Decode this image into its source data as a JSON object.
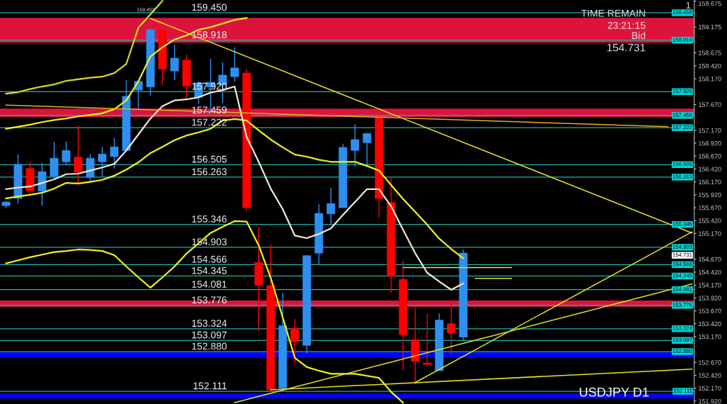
{
  "chart_data": {
    "type": "candlestick",
    "title": "USDJPY D1",
    "categories": [
      null,
      null,
      null,
      null,
      null,
      null,
      null,
      null,
      null,
      null,
      null,
      null,
      null,
      null,
      null,
      null,
      null,
      null,
      null,
      null,
      null,
      null,
      null,
      null,
      null,
      null,
      null,
      null,
      null,
      null,
      null,
      null,
      null,
      null,
      null,
      null,
      null,
      null,
      null,
      null,
      null,
      null,
      null,
      null,
      null,
      null,
      null,
      null,
      null,
      null,
      null,
      null,
      null,
      null,
      null,
      null,
      null,
      null
    ],
    "ohlc": [
      [
        155.71,
        155.8,
        155.66,
        155.78
      ],
      [
        155.85,
        156.7,
        155.75,
        156.51
      ],
      [
        156.43,
        156.56,
        155.92,
        156.0
      ],
      [
        155.99,
        156.54,
        155.71,
        156.37
      ],
      [
        156.28,
        156.95,
        156.22,
        156.63
      ],
      [
        156.56,
        156.96,
        156.49,
        156.78
      ],
      [
        156.65,
        157.26,
        156.12,
        156.36
      ],
      [
        156.26,
        156.71,
        156.17,
        156.63
      ],
      [
        156.56,
        156.85,
        156.26,
        156.71
      ],
      [
        156.66,
        157.02,
        156.43,
        156.85
      ],
      [
        156.78,
        158.14,
        156.77,
        157.83
      ],
      [
        157.95,
        158.14,
        157.59,
        158.12
      ],
      [
        158.01,
        159.15,
        157.84,
        159.12
      ],
      [
        159.11,
        159.11,
        158.05,
        158.36
      ],
      [
        158.32,
        158.83,
        158.14,
        158.57
      ],
      [
        158.53,
        158.64,
        157.77,
        158.03
      ],
      [
        157.81,
        158.12,
        157.68,
        158.09
      ],
      [
        158.01,
        158.56,
        157.5,
        158.1
      ],
      [
        158.05,
        158.49,
        157.7,
        158.24
      ],
      [
        158.21,
        158.78,
        158.12,
        158.38
      ],
      [
        158.28,
        158.36,
        155.6,
        155.67
      ],
      [
        154.61,
        155.3,
        153.28,
        154.17
      ],
      [
        154.16,
        154.96,
        152.1,
        152.14
      ],
      [
        152.17,
        154.02,
        152.14,
        153.38
      ],
      [
        153.33,
        153.51,
        152.66,
        153.07
      ],
      [
        153.0,
        154.75,
        152.85,
        154.74
      ],
      [
        154.79,
        155.74,
        154.57,
        155.56
      ],
      [
        155.55,
        156.06,
        155.33,
        155.75
      ],
      [
        155.67,
        156.91,
        155.67,
        156.84
      ],
      [
        156.78,
        157.29,
        156.47,
        156.99
      ],
      [
        156.93,
        157.11,
        156.47,
        157.11
      ],
      [
        157.43,
        157.43,
        155.48,
        155.85
      ],
      [
        155.77,
        156.26,
        154.02,
        154.34
      ],
      [
        154.28,
        154.64,
        152.52,
        153.21
      ],
      [
        153.11,
        153.75,
        152.25,
        152.69
      ],
      [
        152.66,
        153.62,
        152.63,
        152.63
      ],
      [
        152.51,
        153.62,
        152.51,
        153.49
      ],
      [
        153.42,
        153.88,
        152.83,
        153.24
      ],
      [
        153.16,
        154.86,
        153.1,
        154.79
      ],
      null,
      null,
      null,
      null,
      null,
      null,
      null,
      null,
      null,
      null,
      null,
      null,
      null,
      null,
      null,
      null,
      null,
      null,
      null
    ],
    "colors": [
      "#2e8ff0",
      "#2e8ff0",
      "#ff0000",
      "#2e8ff0",
      "#2e8ff0",
      "#2e8ff0",
      "#ff0000",
      "#2e8ff0",
      "#2e8ff0",
      "#2e8ff0",
      "#2e8ff0",
      "#2e8ff0",
      "#2e8ff0",
      "#ff0000",
      "#2e8ff0",
      "#ff0000",
      "#2e8ff0",
      "#2e8ff0",
      "#2e8ff0",
      "#2e8ff0",
      "#ff0000",
      "#ff0000",
      "#ff0000",
      "#2e8ff0",
      "#ff0000",
      "#2e8ff0",
      "#2e8ff0",
      "#2e8ff0",
      "#2e8ff0",
      "#2e8ff0",
      "#2e8ff0",
      "#ff0000",
      "#ff0000",
      "#ff0000",
      "#ff0000",
      "#ff0000",
      "#2e8ff0",
      "#ff0000",
      "#2e8ff0",
      null,
      null,
      null,
      null,
      null,
      null,
      null,
      null,
      null,
      null,
      null,
      null,
      null,
      null,
      null,
      null,
      null,
      null,
      null
    ],
    "series": [
      {
        "type": "line",
        "color": "#f5e6d3",
        "values": [
          156.03,
          156.06,
          156.08,
          156.15,
          156.22,
          156.32,
          156.33,
          156.39,
          156.45,
          156.52,
          156.78,
          157.09,
          157.4,
          157.64,
          157.75,
          157.77,
          157.81,
          157.9,
          157.95,
          158.02,
          157.04,
          156.56,
          156.04,
          155.64,
          155.13,
          155.08,
          155.16,
          155.27,
          155.53,
          155.78,
          156.03,
          156.03,
          155.7,
          155.24,
          154.79,
          154.41,
          154.24,
          154.08,
          154.2,
          null,
          null,
          null,
          null,
          null,
          null,
          null,
          null,
          null,
          null,
          null,
          null,
          null,
          null,
          null,
          null,
          null,
          null,
          null
        ]
      },
      {
        "type": "line",
        "color": "#f0f020",
        "values": [
          155.85,
          155.89,
          155.92,
          155.96,
          156.04,
          156.15,
          156.14,
          156.17,
          156.21,
          156.29,
          156.41,
          156.55,
          156.73,
          156.85,
          156.98,
          157.07,
          157.13,
          157.2,
          157.36,
          157.39,
          157.36,
          157.17,
          156.99,
          156.84,
          156.7,
          156.66,
          156.6,
          156.56,
          156.56,
          156.56,
          156.48,
          156.39,
          156.11,
          155.84,
          155.59,
          155.34,
          155.07,
          154.87,
          154.69,
          null,
          null,
          null,
          null,
          null,
          null,
          null,
          null,
          null,
          null,
          null,
          null,
          null,
          null,
          null,
          null,
          null,
          null,
          null
        ]
      },
      {
        "type": "line",
        "color": "#f0f020",
        "values": [
          157.2,
          157.24,
          157.28,
          157.33,
          157.37,
          157.4,
          157.44,
          157.47,
          157.5,
          157.58,
          157.75,
          158.12,
          158.6,
          158.78,
          158.93,
          159.01,
          159.12,
          159.17,
          159.24,
          159.31,
          159.35,
          null,
          null,
          null,
          null,
          null,
          null,
          null,
          null,
          null,
          null,
          null,
          null,
          null,
          null,
          null,
          null,
          null,
          null,
          null,
          null,
          null,
          null,
          null,
          null,
          null,
          null,
          null,
          null,
          null,
          null,
          null,
          null,
          null,
          null,
          null,
          null,
          null
        ]
      },
      {
        "type": "line",
        "color": "#f0f020",
        "values": [
          154.59,
          154.65,
          154.71,
          154.76,
          154.81,
          154.83,
          154.86,
          154.85,
          154.83,
          154.75,
          154.53,
          154.32,
          154.12,
          154.32,
          154.53,
          154.78,
          154.98,
          155.18,
          155.3,
          155.41,
          155.4,
          154.94,
          154.31,
          153.54,
          152.76,
          152.58,
          152.51,
          152.45,
          152.45,
          152.45,
          152.41,
          152.37,
          152.1,
          151.89,
          null,
          null,
          null,
          null,
          null,
          null,
          null,
          null,
          null,
          null,
          null,
          null,
          null,
          null,
          null,
          null,
          null,
          null,
          null,
          null,
          null,
          null,
          null,
          null
        ]
      },
      {
        "type": "line",
        "color": "#d8d820",
        "values": [
          157.88,
          157.91,
          157.97,
          158.02,
          158.06,
          158.13,
          158.16,
          158.19,
          158.21,
          158.28,
          158.46,
          159.16,
          159.42,
          159.68,
          null,
          null,
          null,
          null,
          null,
          null,
          null,
          null,
          null,
          null,
          null,
          null,
          null,
          null,
          null,
          null,
          null,
          null,
          null,
          null,
          null,
          null,
          null,
          null,
          null,
          null,
          null,
          null,
          null,
          null,
          null,
          null,
          null,
          null,
          null,
          null,
          null,
          null,
          null,
          null,
          null,
          null,
          null,
          null
        ]
      },
      {
        "type": "line",
        "color": "#e8e020",
        "values": [
          null,
          null,
          null,
          null,
          null,
          null,
          null,
          null,
          null,
          null,
          null,
          null,
          159.34,
          null,
          null,
          null,
          null,
          null,
          null,
          null,
          null,
          null,
          null,
          null,
          null,
          null,
          null,
          null,
          null,
          null,
          null,
          null,
          null,
          null,
          null,
          null,
          null,
          null,
          null,
          null,
          null,
          null,
          null,
          null,
          null,
          null,
          null,
          null,
          null,
          null,
          null,
          null,
          null,
          null,
          null,
          null,
          null,
          155.18
        ]
      },
      {
        "type": "line",
        "color": "#e0b020",
        "values": [
          157.66,
          null,
          null,
          null,
          null,
          null,
          null,
          null,
          null,
          null,
          null,
          null,
          null,
          null,
          null,
          null,
          null,
          null,
          null,
          null,
          null,
          null,
          null,
          null,
          null,
          null,
          null,
          null,
          null,
          null,
          null,
          null,
          null,
          null,
          null,
          null,
          null,
          null,
          null,
          null,
          null,
          null,
          null,
          null,
          null,
          null,
          null,
          null,
          null,
          null,
          null,
          null,
          null,
          null,
          null,
          157.24,
          null,
          null
        ]
      },
      {
        "type": "line",
        "color": "#e8e020",
        "values": [
          null,
          null,
          null,
          null,
          null,
          null,
          null,
          null,
          null,
          null,
          null,
          null,
          null,
          null,
          null,
          null,
          null,
          null,
          null,
          151.89,
          null,
          null,
          null,
          null,
          null,
          null,
          null,
          null,
          null,
          null,
          null,
          null,
          null,
          null,
          null,
          null,
          null,
          null,
          null,
          null,
          null,
          null,
          null,
          null,
          null,
          null,
          null,
          null,
          null,
          null,
          null,
          null,
          null,
          null,
          null,
          null,
          null,
          154.19
        ]
      },
      {
        "type": "line",
        "color": "#e8e020",
        "values": [
          null,
          null,
          null,
          null,
          null,
          null,
          null,
          null,
          null,
          null,
          null,
          null,
          null,
          null,
          null,
          null,
          null,
          null,
          null,
          null,
          null,
          null,
          null,
          null,
          null,
          null,
          null,
          null,
          null,
          null,
          null,
          null,
          null,
          null,
          152.28,
          null,
          null,
          null,
          null,
          null,
          null,
          null,
          null,
          null,
          null,
          null,
          null,
          null,
          null,
          null,
          null,
          null,
          null,
          null,
          null,
          null,
          null,
          155.2
        ]
      },
      {
        "type": "line",
        "color": "#e8e020",
        "values": [
          null,
          null,
          null,
          null,
          null,
          null,
          null,
          null,
          null,
          null,
          null,
          null,
          null,
          null,
          null,
          null,
          null,
          null,
          null,
          null,
          null,
          null,
          152.14,
          null,
          null,
          null,
          null,
          null,
          null,
          null,
          null,
          null,
          null,
          null,
          null,
          null,
          null,
          null,
          null,
          null,
          null,
          null,
          null,
          null,
          null,
          null,
          null,
          null,
          null,
          null,
          null,
          null,
          null,
          null,
          null,
          null,
          null,
          152.54
        ]
      },
      {
        "type": "line",
        "color": "#e8e020",
        "values": [
          null,
          null,
          null,
          null,
          null,
          null,
          null,
          null,
          null,
          null,
          null,
          null,
          null,
          null,
          null,
          null,
          null,
          null,
          null,
          null,
          null,
          null,
          null,
          null,
          null,
          null,
          null,
          null,
          null,
          null,
          null,
          null,
          null,
          154.51,
          null,
          null,
          null,
          null,
          null,
          null,
          null,
          null,
          154.51,
          null,
          null,
          null,
          null,
          null,
          null,
          null,
          null,
          null,
          null,
          null,
          null,
          null,
          null,
          null
        ]
      },
      {
        "type": "line",
        "color": "#e8e020",
        "values": [
          null,
          null,
          null,
          null,
          null,
          null,
          null,
          null,
          null,
          null,
          null,
          null,
          null,
          null,
          null,
          null,
          null,
          null,
          null,
          null,
          null,
          null,
          null,
          null,
          null,
          null,
          null,
          null,
          null,
          null,
          null,
          null,
          null,
          null,
          null,
          null,
          null,
          null,
          null,
          154.3,
          null,
          null,
          154.3,
          null,
          null,
          null,
          null,
          null,
          null,
          null,
          null,
          null,
          null,
          null,
          null,
          null,
          null,
          null
        ]
      }
    ],
    "bands": [
      {
        "axis": "y",
        "from": 158.87,
        "to": 159.35,
        "color": "#dc143c"
      },
      {
        "axis": "y",
        "from": 157.43,
        "to": 157.59,
        "color": "#dc143c"
      },
      {
        "axis": "y",
        "from": 153.75,
        "to": 153.87,
        "color": "#dc143c"
      },
      {
        "axis": "y",
        "from": 152.76,
        "to": 152.87,
        "color": "#0000ff"
      },
      {
        "axis": "y",
        "from": 151.97,
        "to": 152.07,
        "color": "#0000ff"
      }
    ],
    "ref_lines": [
      {
        "axis": "y",
        "value": 159.45,
        "label": "159.450",
        "color": "#20b2aa"
      },
      {
        "axis": "y",
        "value": 158.918,
        "label": "158.918",
        "color": "#20b2aa"
      },
      {
        "axis": "y",
        "value": 157.92,
        "label": "157.920",
        "color": "#20b2aa"
      },
      {
        "axis": "y",
        "value": 157.459,
        "label": "157.459",
        "color": "#20b2aa"
      },
      {
        "axis": "y",
        "value": 157.222,
        "label": "157.222",
        "color": "#20b2aa"
      },
      {
        "axis": "y",
        "value": 156.505,
        "label": "156.505",
        "color": "#20b2aa"
      },
      {
        "axis": "y",
        "value": 156.263,
        "label": "156.263",
        "color": "#20b2aa"
      },
      {
        "axis": "y",
        "value": 155.346,
        "label": "155.346",
        "color": "#20b2aa"
      },
      {
        "axis": "y",
        "value": 154.903,
        "label": "154.903",
        "color": "#20b2aa"
      },
      {
        "axis": "y",
        "value": 154.566,
        "label": "154.566",
        "color": "#20b2aa"
      },
      {
        "axis": "y",
        "value": 154.345,
        "label": "154.345",
        "color": "#20b2aa"
      },
      {
        "axis": "y",
        "value": 154.081,
        "label": "154.081",
        "color": "#20b2aa"
      },
      {
        "axis": "y",
        "value": 153.776,
        "label": "153.776",
        "color": "#20b2aa"
      },
      {
        "axis": "y",
        "value": 153.324,
        "label": "153.324",
        "color": "#20b2aa"
      },
      {
        "axis": "y",
        "value": 153.097,
        "label": "153.097",
        "color": "#20b2aa"
      },
      {
        "axis": "y",
        "value": 152.88,
        "label": "152.880",
        "color": "#20b2aa"
      },
      {
        "axis": "y",
        "value": 152.111,
        "label": "152.111",
        "color": "#20b2aa"
      }
    ],
    "annotations": [
      "1",
      "TIME REMAIN",
      "23:21:15",
      "Bid",
      "154.731",
      "159.453",
      "154.731"
    ],
    "ylim": [
      151.864,
      159.697
    ],
    "yticks": [
      {
        "value": 159.675,
        "label": "159.675"
      },
      {
        "value": 159.175,
        "label": "159.175"
      },
      {
        "value": 158.675,
        "label": "158.675"
      },
      {
        "value": 158.42,
        "label": "158.420"
      },
      {
        "value": 158.17,
        "label": "158.170"
      },
      {
        "value": 157.67,
        "label": "157.670"
      },
      {
        "value": 157.17,
        "label": "157.170"
      },
      {
        "value": 156.92,
        "label": "156.920"
      },
      {
        "value": 156.67,
        "label": "156.670"
      },
      {
        "value": 156.42,
        "label": "156.420"
      },
      {
        "value": 156.17,
        "label": "156.170"
      },
      {
        "value": 155.92,
        "label": "155.920"
      },
      {
        "value": 155.67,
        "label": "155.670"
      },
      {
        "value": 155.42,
        "label": "155.420"
      },
      {
        "value": 155.17,
        "label": "155.170"
      },
      {
        "value": 154.67,
        "label": "154.670"
      },
      {
        "value": 154.42,
        "label": "154.420"
      },
      {
        "value": 154.17,
        "label": "154.170"
      },
      {
        "value": 153.92,
        "label": "153.920"
      },
      {
        "value": 153.67,
        "label": "153.670"
      },
      {
        "value": 153.42,
        "label": "153.420"
      },
      {
        "value": 153.17,
        "label": "153.170"
      },
      {
        "value": 152.67,
        "label": "152.670"
      },
      {
        "value": 152.42,
        "label": "152.420"
      },
      {
        "value": 152.17,
        "label": "152.170"
      },
      {
        "value": 151.92,
        "label": "151.920"
      }
    ],
    "tick_labels": "y"
  }
}
